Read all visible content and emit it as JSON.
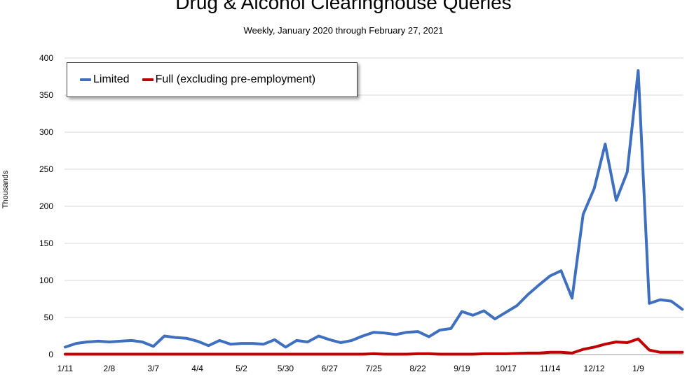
{
  "chart_data": {
    "type": "line",
    "title": "Drug & Alcohol Clearinghouse Queries",
    "subtitle": "Weekly, January 2020 through February 27, 2021",
    "ylabel": "Thousands",
    "xlabel": "",
    "ylim": [
      0,
      400
    ],
    "yticks": [
      "0",
      "50",
      "100",
      "150",
      "200",
      "250",
      "300",
      "350",
      "400"
    ],
    "grid": true,
    "legend_position": "top-left",
    "x_tick_labels": [
      "1/11",
      "2/8",
      "3/7",
      "4/4",
      "5/2",
      "5/30",
      "6/27",
      "7/25",
      "8/22",
      "9/19",
      "10/17",
      "11/14",
      "12/12",
      "1/9"
    ],
    "x_tick_every": 4,
    "series": [
      {
        "name": "Limited",
        "color": "#3f6fbf",
        "values": [
          10,
          15,
          17,
          18,
          17,
          18,
          19,
          17,
          11,
          25,
          23,
          22,
          18,
          12,
          19,
          14,
          15,
          15,
          14,
          20,
          10,
          19,
          17,
          25,
          20,
          16,
          19,
          25,
          30,
          29,
          27,
          30,
          31,
          24,
          33,
          35,
          58,
          53,
          59,
          48,
          57,
          66,
          81,
          94,
          106,
          113,
          76,
          189,
          224,
          284,
          208,
          246,
          383,
          69,
          74,
          72,
          61
        ]
      },
      {
        "name": "Full (excluding pre-employment)",
        "color": "#c00000",
        "values": [
          0.5,
          0.5,
          0.5,
          0.5,
          0.5,
          0.5,
          0.5,
          0.5,
          0.5,
          0.5,
          0.5,
          0.5,
          0.5,
          0.5,
          0.5,
          0.5,
          0.5,
          0.5,
          0.5,
          0.5,
          0.5,
          0.5,
          0.5,
          0.5,
          0.5,
          0.5,
          0.5,
          0.5,
          1,
          0.5,
          0.5,
          0.5,
          1,
          1,
          0.5,
          0.5,
          0.5,
          0.5,
          1,
          1,
          1,
          1.5,
          2,
          2,
          3,
          3,
          2,
          7,
          10,
          14,
          17,
          16,
          21,
          6,
          3,
          3,
          3
        ]
      }
    ]
  }
}
